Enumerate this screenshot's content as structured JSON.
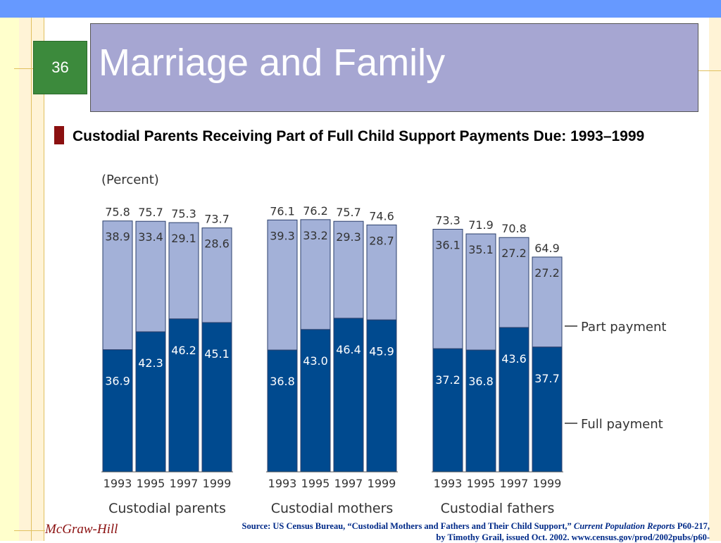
{
  "slide": {
    "page_number": "36",
    "title": "Marriage and Family",
    "subtitle": "Custodial Parents Receiving Part of Full Child Support Payments Due: 1993–1999",
    "footer_brand": "McGraw-Hill",
    "source_prefix": "Source: US Census Bureau, “Custodial Mothers and Fathers and Their Child Support,” ",
    "source_italic": "Current Population Reports",
    "source_suffix": " P60-217, by Timothy Grail, issued Oct. 2002. www.census.gov/prod/2002pubs/p60-"
  },
  "colors": {
    "full_payment": "#004a8f",
    "part_payment": "#a3b1d8",
    "top_bar": "#6699ff",
    "title_box": "#a6a6d2",
    "page_box": "#3c8a3c"
  },
  "chart_data": {
    "type": "bar",
    "stacked": true,
    "unit_label": "(Percent)",
    "groups": [
      {
        "name": "Custodial parents",
        "years": [
          "1993",
          "1995",
          "1997",
          "1999"
        ],
        "full": [
          36.9,
          42.3,
          46.2,
          45.1
        ],
        "part": [
          38.9,
          33.4,
          29.1,
          28.6
        ],
        "total": [
          75.8,
          75.7,
          75.3,
          73.7
        ]
      },
      {
        "name": "Custodial mothers",
        "years": [
          "1993",
          "1995",
          "1997",
          "1999"
        ],
        "full": [
          36.8,
          43.0,
          46.4,
          45.9
        ],
        "part": [
          39.3,
          33.2,
          29.3,
          28.7
        ],
        "total": [
          76.1,
          76.2,
          75.7,
          74.6
        ]
      },
      {
        "name": "Custodial fathers",
        "years": [
          "1993",
          "1995",
          "1997",
          "1999"
        ],
        "full": [
          37.2,
          36.8,
          43.6,
          37.7
        ],
        "part": [
          36.1,
          35.1,
          27.2,
          27.2
        ],
        "total": [
          73.3,
          71.9,
          70.8,
          64.9
        ]
      }
    ],
    "series": [
      {
        "name": "Full payment",
        "key": "full"
      },
      {
        "name": "Part payment",
        "key": "part"
      }
    ],
    "legend_placement": "right",
    "ylim": [
      0,
      100
    ],
    "grid": false
  }
}
